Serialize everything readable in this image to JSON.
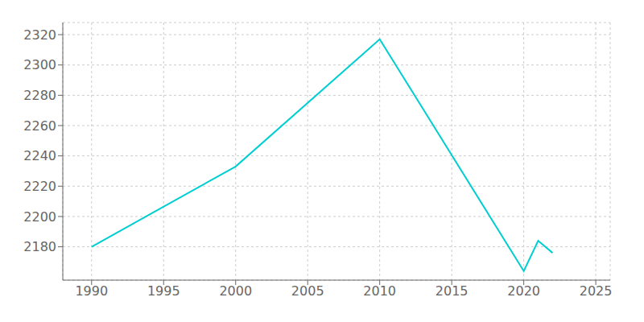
{
  "chart_data": {
    "type": "line",
    "x": [
      1990,
      2000,
      2010,
      2020,
      2021,
      2022
    ],
    "values": [
      2180,
      2233,
      2317,
      2164,
      2184,
      2176
    ],
    "color": "#00CED1",
    "xlim": [
      1988,
      2026
    ],
    "ylim": [
      2158,
      2328
    ],
    "xticks": [
      1990,
      1995,
      2000,
      2005,
      2010,
      2015,
      2020,
      2025
    ],
    "yticks": [
      2180,
      2200,
      2220,
      2240,
      2260,
      2280,
      2300,
      2320
    ],
    "grid": true
  }
}
